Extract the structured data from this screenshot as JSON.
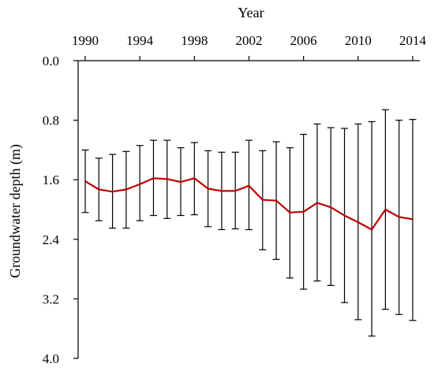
{
  "chart_data": {
    "type": "line",
    "title": "",
    "xlabel": "Year",
    "ylabel": "Groundwater depth (m)",
    "x_axis_position": "top",
    "y_inverted": true,
    "xlim": [
      1989,
      2015
    ],
    "ylim": [
      0.0,
      4.0
    ],
    "x_ticks": [
      "1990",
      "1994",
      "1998",
      "2002",
      "2006",
      "2010",
      "2014"
    ],
    "y_ticks": [
      "0.0",
      "0.8",
      "1.6",
      "2.4",
      "3.2",
      "4.0"
    ],
    "grid": false,
    "legend": "none",
    "series": [
      {
        "color": "#c00000",
        "x": [
          1990,
          1991,
          1992,
          1993,
          1994,
          1995,
          1996,
          1997,
          1998,
          1999,
          2000,
          2001,
          2002,
          2003,
          2004,
          2005,
          2006,
          2007,
          2008,
          2009,
          2010,
          2011,
          2012,
          2013,
          2014
        ],
        "values": [
          1.62,
          1.73,
          1.76,
          1.73,
          1.66,
          1.58,
          1.59,
          1.63,
          1.58,
          1.72,
          1.75,
          1.75,
          1.68,
          1.87,
          1.88,
          2.04,
          2.03,
          1.91,
          1.97,
          2.08,
          2.17,
          2.27,
          2.0,
          2.1,
          2.13
        ],
        "error_low": [
          1.2,
          1.31,
          1.26,
          1.22,
          1.14,
          1.07,
          1.07,
          1.17,
          1.1,
          1.21,
          1.23,
          1.23,
          1.07,
          1.21,
          1.09,
          1.17,
          0.99,
          0.85,
          0.9,
          0.91,
          0.85,
          0.82,
          0.66,
          0.8,
          0.79
        ],
        "error_high": [
          2.04,
          2.15,
          2.25,
          2.25,
          2.15,
          2.08,
          2.12,
          2.08,
          2.07,
          2.23,
          2.27,
          2.26,
          2.27,
          2.54,
          2.67,
          2.92,
          3.07,
          2.96,
          3.02,
          3.25,
          3.48,
          3.7,
          3.34,
          3.41,
          3.49
        ]
      }
    ]
  }
}
